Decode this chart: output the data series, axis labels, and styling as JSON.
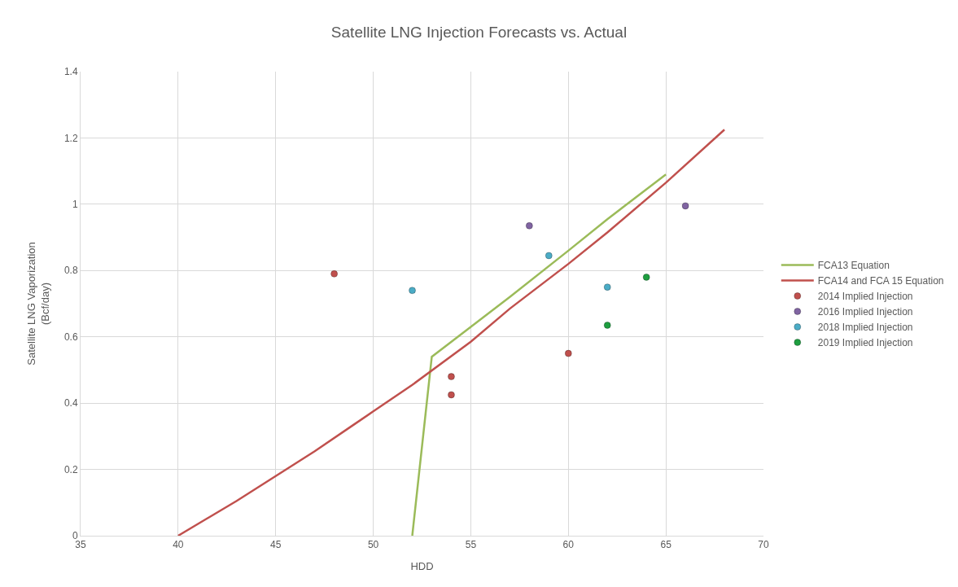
{
  "chart_data": {
    "type": "scatter",
    "title": "Satellite LNG Injection Forecasts vs. Actual",
    "xlabel": "HDD",
    "ylabel": "Satellite LNG Vaporization\n(Bcf/day)",
    "xlim": [
      35,
      70
    ],
    "xticks": [
      35,
      40,
      45,
      50,
      55,
      60,
      65,
      70
    ],
    "ylim": [
      0,
      1.4
    ],
    "yticks": [
      0,
      0.2,
      0.4,
      0.6,
      0.8,
      1,
      1.2,
      1.4
    ],
    "grid": true,
    "legend": "right",
    "series": [
      {
        "name": "FCA13 Equation",
        "type": "line",
        "color": "#9bbb59",
        "x": [
          52,
          53,
          55,
          57,
          60,
          62,
          65
        ],
        "values": [
          0,
          0.54,
          0.63,
          0.72,
          0.86,
          0.955,
          1.09
        ]
      },
      {
        "name": "FCA14 and FCA 15 Equation",
        "type": "line",
        "color": "#c0504d",
        "x": [
          40,
          43,
          45,
          47,
          49,
          50,
          52,
          55,
          57,
          60,
          62,
          65,
          68
        ],
        "values": [
          0,
          0.105,
          0.18,
          0.255,
          0.335,
          0.375,
          0.455,
          0.585,
          0.685,
          0.82,
          0.915,
          1.065,
          1.225
        ]
      },
      {
        "name": "2014 Implied Injection",
        "marker": "circle",
        "color": "#c0504d",
        "x": [
          48,
          54,
          54,
          60
        ],
        "values": [
          0.79,
          0.48,
          0.425,
          0.55
        ]
      },
      {
        "name": "2016 Implied Injection",
        "marker": "circle",
        "color": "#8064a2",
        "x": [
          58,
          66
        ],
        "values": [
          0.935,
          0.995
        ]
      },
      {
        "name": "2018 Implied Injection",
        "marker": "circle",
        "color": "#4bacc6",
        "x": [
          52,
          59,
          62
        ],
        "values": [
          0.74,
          0.845,
          0.75
        ]
      },
      {
        "name": "2019 Implied Injection",
        "marker": "circle",
        "color": "#1e9e40",
        "x": [
          62,
          64
        ],
        "values": [
          0.635,
          0.78
        ]
      }
    ]
  }
}
